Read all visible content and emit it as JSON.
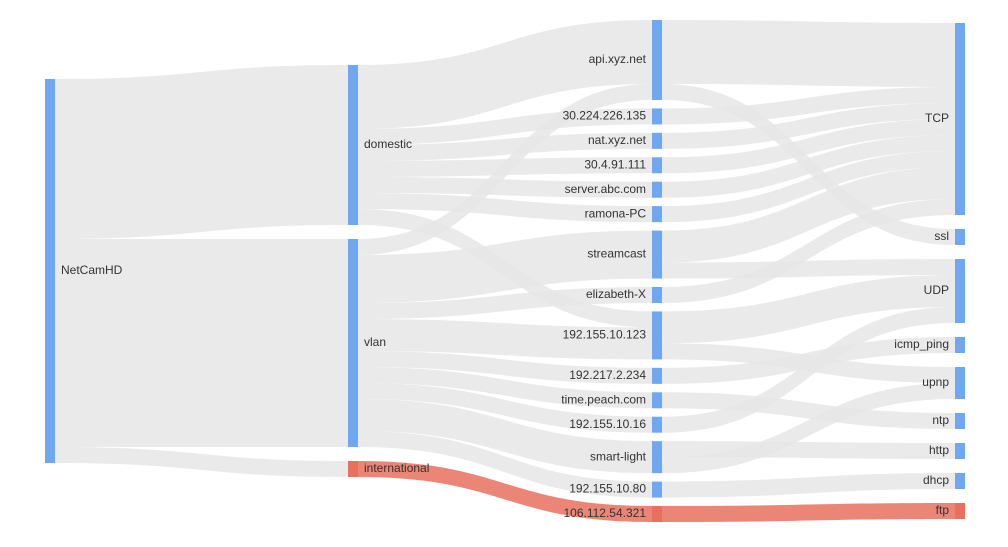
{
  "chart_data": {
    "type": "sankey",
    "link_color": "#e6e6e6",
    "nodes": [
      {
        "label": "NetCamHD",
        "column": 0,
        "color": "#6fa8f0"
      },
      {
        "label": "domestic",
        "column": 1,
        "color": "#6fa8f0"
      },
      {
        "label": "vlan",
        "column": 1,
        "color": "#6fa8f0"
      },
      {
        "label": "international",
        "column": 1,
        "color": "#e8705e"
      },
      {
        "label": "api.xyz.net",
        "column": 2,
        "color": "#6fa8f0"
      },
      {
        "label": "30.224.226.135",
        "column": 2,
        "color": "#6fa8f0"
      },
      {
        "label": "nat.xyz.net",
        "column": 2,
        "color": "#6fa8f0"
      },
      {
        "label": "30.4.91.111",
        "column": 2,
        "color": "#6fa8f0"
      },
      {
        "label": "server.abc.com",
        "column": 2,
        "color": "#6fa8f0"
      },
      {
        "label": "ramona-PC",
        "column": 2,
        "color": "#6fa8f0"
      },
      {
        "label": "streamcast",
        "column": 2,
        "color": "#6fa8f0"
      },
      {
        "label": "elizabeth-X",
        "column": 2,
        "color": "#6fa8f0"
      },
      {
        "label": "192.155.10.123",
        "column": 2,
        "color": "#6fa8f0"
      },
      {
        "label": "192.217.2.234",
        "column": 2,
        "color": "#6fa8f0"
      },
      {
        "label": "time.peach.com",
        "column": 2,
        "color": "#6fa8f0"
      },
      {
        "label": "192.155.10.16",
        "column": 2,
        "color": "#6fa8f0"
      },
      {
        "label": "smart-light",
        "column": 2,
        "color": "#6fa8f0"
      },
      {
        "label": "192.155.10.80",
        "column": 2,
        "color": "#6fa8f0"
      },
      {
        "label": "106.112.54.321",
        "column": 2,
        "color": "#e8705e"
      },
      {
        "label": "TCP",
        "column": 3,
        "color": "#6fa8f0"
      },
      {
        "label": "ssl",
        "column": 3,
        "color": "#6fa8f0"
      },
      {
        "label": "UDP",
        "column": 3,
        "color": "#6fa8f0"
      },
      {
        "label": "icmp_ping",
        "column": 3,
        "color": "#6fa8f0"
      },
      {
        "label": "upnp",
        "column": 3,
        "color": "#6fa8f0"
      },
      {
        "label": "ntp",
        "column": 3,
        "color": "#6fa8f0"
      },
      {
        "label": "http",
        "column": 3,
        "color": "#6fa8f0"
      },
      {
        "label": "dhcp",
        "column": 3,
        "color": "#6fa8f0"
      },
      {
        "label": "ftp",
        "column": 3,
        "color": "#e8705e"
      }
    ],
    "links": [
      {
        "source": 0,
        "target": 1,
        "value": 10
      },
      {
        "source": 0,
        "target": 2,
        "value": 13
      },
      {
        "source": 0,
        "target": 3,
        "value": 1,
        "color": "#e6e6e6"
      },
      {
        "source": 1,
        "target": 4,
        "value": 4
      },
      {
        "source": 1,
        "target": 5,
        "value": 1
      },
      {
        "source": 1,
        "target": 6,
        "value": 1
      },
      {
        "source": 1,
        "target": 7,
        "value": 1
      },
      {
        "source": 1,
        "target": 8,
        "value": 1
      },
      {
        "source": 1,
        "target": 9,
        "value": 1
      },
      {
        "source": 1,
        "target": 12,
        "value": 1
      },
      {
        "source": 2,
        "target": 4,
        "value": 1
      },
      {
        "source": 2,
        "target": 10,
        "value": 3
      },
      {
        "source": 2,
        "target": 11,
        "value": 1
      },
      {
        "source": 2,
        "target": 12,
        "value": 2
      },
      {
        "source": 2,
        "target": 13,
        "value": 1
      },
      {
        "source": 2,
        "target": 14,
        "value": 1
      },
      {
        "source": 2,
        "target": 15,
        "value": 1
      },
      {
        "source": 2,
        "target": 16,
        "value": 2
      },
      {
        "source": 2,
        "target": 17,
        "value": 1
      },
      {
        "source": 3,
        "target": 18,
        "value": 1,
        "color": "#e8705e"
      },
      {
        "source": 4,
        "target": 19,
        "value": 4
      },
      {
        "source": 4,
        "target": 20,
        "value": 1
      },
      {
        "source": 5,
        "target": 19,
        "value": 1
      },
      {
        "source": 6,
        "target": 19,
        "value": 1
      },
      {
        "source": 7,
        "target": 19,
        "value": 1
      },
      {
        "source": 8,
        "target": 19,
        "value": 1
      },
      {
        "source": 9,
        "target": 19,
        "value": 1
      },
      {
        "source": 10,
        "target": 19,
        "value": 2
      },
      {
        "source": 10,
        "target": 21,
        "value": 1
      },
      {
        "source": 11,
        "target": 19,
        "value": 1
      },
      {
        "source": 12,
        "target": 21,
        "value": 2
      },
      {
        "source": 12,
        "target": 23,
        "value": 1
      },
      {
        "source": 13,
        "target": 22,
        "value": 1
      },
      {
        "source": 14,
        "target": 24,
        "value": 1
      },
      {
        "source": 15,
        "target": 21,
        "value": 1
      },
      {
        "source": 16,
        "target": 25,
        "value": 1
      },
      {
        "source": 16,
        "target": 23,
        "value": 1
      },
      {
        "source": 17,
        "target": 26,
        "value": 1
      },
      {
        "source": 18,
        "target": 27,
        "value": 1,
        "color": "#e8705e"
      }
    ]
  }
}
